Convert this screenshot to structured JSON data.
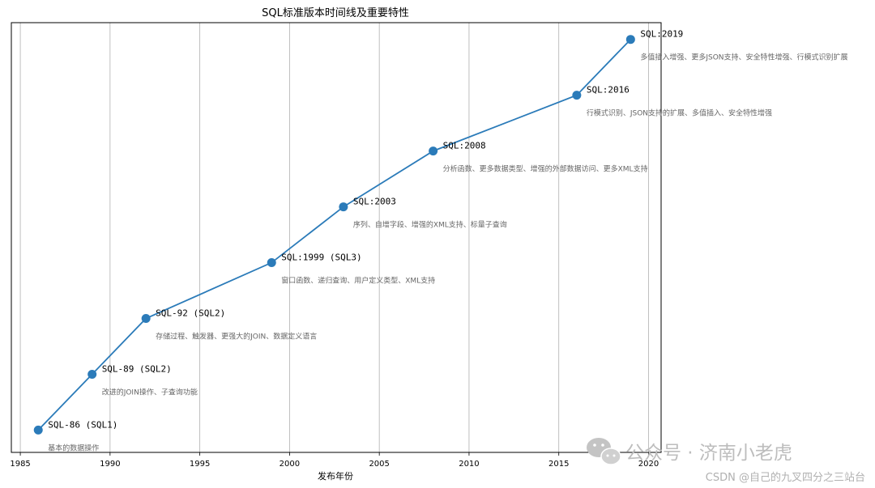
{
  "chart_data": {
    "type": "line",
    "title": "SQL标准版本时间线及重要特性",
    "xlabel": "发布年份",
    "ylabel": "",
    "xlim": [
      1984.5,
      2020.7
    ],
    "ylim": [
      0.6,
      8.3
    ],
    "xticks": [
      1985,
      1990,
      1995,
      2000,
      2005,
      2010,
      2015,
      2020
    ],
    "grid": "vertical",
    "line_color": "#2b7bb9",
    "points": [
      {
        "x": 1986,
        "y": 1,
        "label": "SQL-86 (SQL1)",
        "features": "基本的数据操作"
      },
      {
        "x": 1989,
        "y": 2,
        "label": "SQL-89 (SQL2)",
        "features": "改进的JOIN操作、子查询功能"
      },
      {
        "x": 1992,
        "y": 3,
        "label": "SQL-92 (SQL2)",
        "features": "存储过程、触发器、更强大的JOIN、数据定义语言"
      },
      {
        "x": 1999,
        "y": 4,
        "label": "SQL:1999 (SQL3)",
        "features": "窗口函数、递归查询、用户定义类型、XML支持"
      },
      {
        "x": 2003,
        "y": 5,
        "label": "SQL:2003",
        "features": "序列、自增字段、增强的XML支持、标量子查询"
      },
      {
        "x": 2008,
        "y": 6,
        "label": "SQL:2008",
        "features": "分析函数、更多数据类型、增强的外部数据访问、更多XML支持"
      },
      {
        "x": 2016,
        "y": 7,
        "label": "SQL:2016",
        "features": "行模式识别、JSON支持的扩展、多值插入、安全特性增强"
      },
      {
        "x": 2019,
        "y": 8,
        "label": "SQL:2019",
        "features": "多值插入增强、更多JSON支持、安全特性增强、行模式识别扩展"
      }
    ]
  },
  "watermark": {
    "main": "公众号 · 济南小老虎",
    "sub": "CSDN @自己的九叉四分之三站台"
  }
}
